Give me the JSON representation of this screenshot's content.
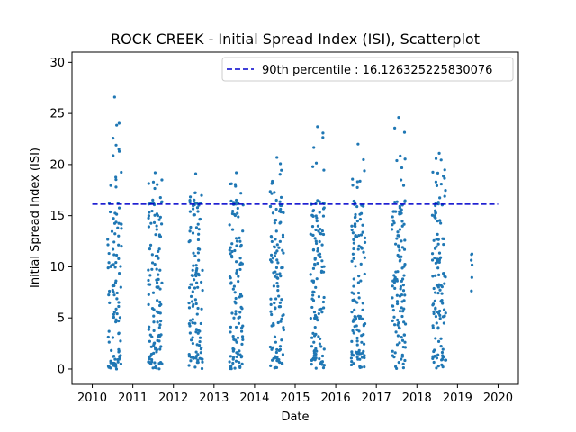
{
  "chart_data": {
    "type": "scatter",
    "title": "ROCK CREEK - Initial Spread Index (ISI), Scatterplot",
    "xlabel": "Date",
    "ylabel": "Initial Spread Index (ISI)",
    "xlim": [
      2009.5,
      2020.5
    ],
    "ylim": [
      -1.5,
      31
    ],
    "x_ticks": [
      "2010",
      "2011",
      "2012",
      "2013",
      "2014",
      "2015",
      "2016",
      "2017",
      "2018",
      "2019",
      "2020"
    ],
    "y_ticks": [
      0,
      5,
      10,
      15,
      20,
      25,
      30
    ],
    "grid": false,
    "legend_position": "top-right",
    "reference_line": {
      "label": "90th percentile : 16.126325225830076",
      "value": 16.126325225830076,
      "x_start": 2010.0,
      "x_end": 2020.0,
      "style": "dashed",
      "color": "#0000cc"
    },
    "point_color": "#1f77b4",
    "series": [
      {
        "seasons": [
          {
            "year": 2010,
            "start": 2010.38,
            "end": 2010.72,
            "count": 110,
            "peak": 26.6
          },
          {
            "year": 2011,
            "start": 2011.38,
            "end": 2011.72,
            "count": 120,
            "peak": 19.2
          },
          {
            "year": 2012,
            "start": 2012.38,
            "end": 2012.72,
            "count": 115,
            "peak": 19.1
          },
          {
            "year": 2013,
            "start": 2013.38,
            "end": 2013.72,
            "count": 115,
            "peak": 19.2
          },
          {
            "year": 2014,
            "start": 2014.38,
            "end": 2014.72,
            "count": 120,
            "peak": 20.7
          },
          {
            "year": 2015,
            "start": 2015.38,
            "end": 2015.72,
            "count": 125,
            "peak": 23.7
          },
          {
            "year": 2016,
            "start": 2016.38,
            "end": 2016.72,
            "count": 125,
            "peak": 22.0
          },
          {
            "year": 2017,
            "start": 2017.38,
            "end": 2017.72,
            "count": 125,
            "peak": 24.6
          },
          {
            "year": 2018,
            "start": 2018.38,
            "end": 2018.72,
            "count": 125,
            "peak": 21.1
          },
          {
            "year": 2019,
            "start": 2019.33,
            "end": 2019.36,
            "count": 5,
            "peak": 11.2
          }
        ]
      }
    ]
  }
}
